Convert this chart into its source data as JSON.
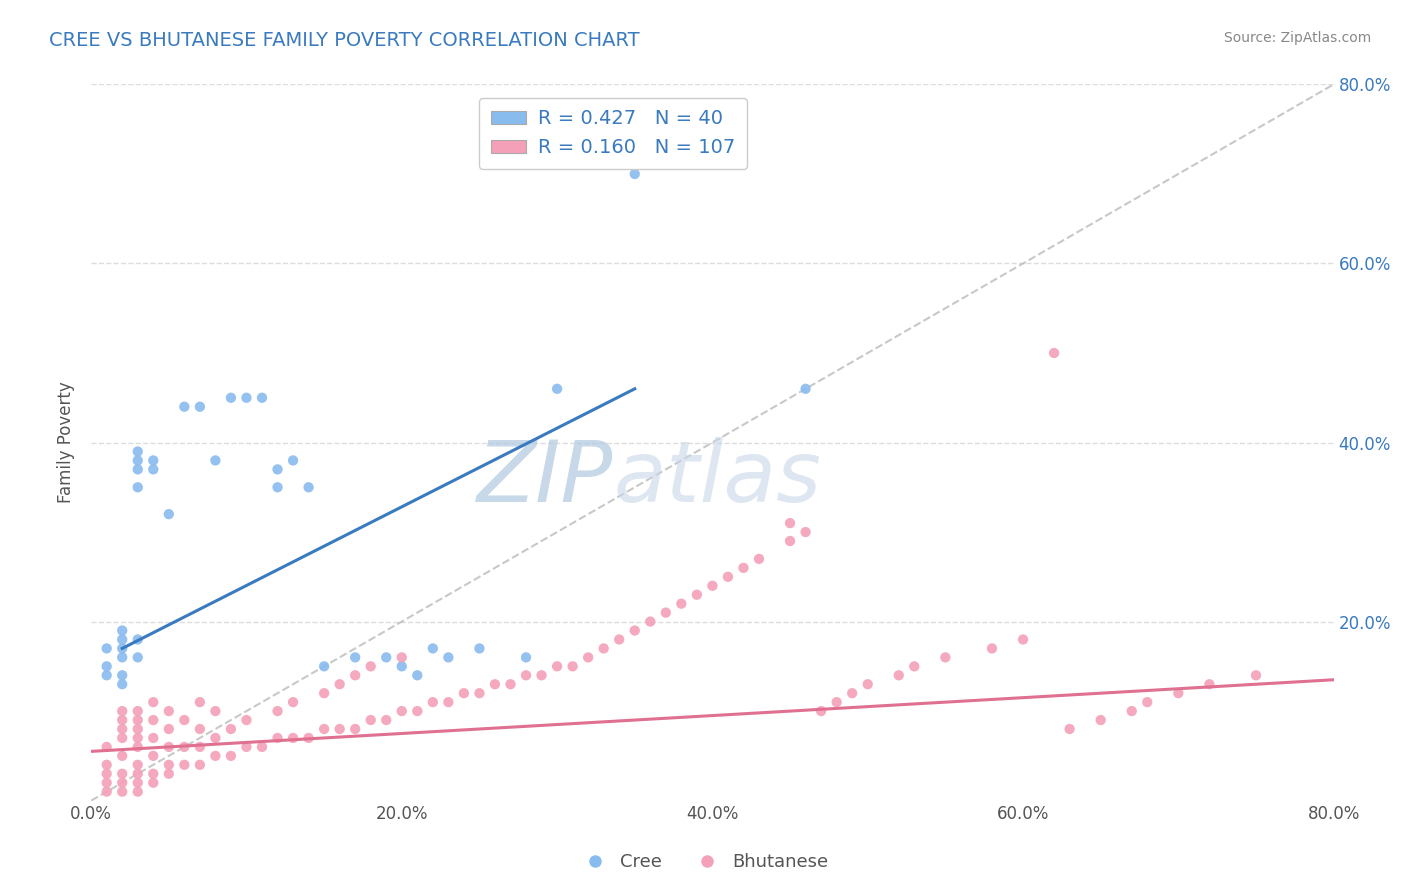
{
  "title": "CREE VS BHUTANESE FAMILY POVERTY CORRELATION CHART",
  "source": "Source: ZipAtlas.com",
  "ylabel": "Family Poverty",
  "xlim": [
    0.0,
    0.8
  ],
  "ylim": [
    0.0,
    0.8
  ],
  "xtick_labels": [
    "0.0%",
    "",
    "20.0%",
    "",
    "40.0%",
    "",
    "60.0%",
    "",
    "80.0%"
  ],
  "xtick_vals": [
    0.0,
    0.1,
    0.2,
    0.3,
    0.4,
    0.5,
    0.6,
    0.7,
    0.8
  ],
  "ytick_vals": [
    0.2,
    0.4,
    0.6,
    0.8
  ],
  "ytick_labels_right": [
    "20.0%",
    "40.0%",
    "60.0%",
    "80.0%"
  ],
  "cree_color": "#88bbee",
  "bhutanese_color": "#f4a0b8",
  "cree_line_color": "#3a7abf",
  "bhutanese_line_color": "#e07090",
  "cree_R": 0.427,
  "cree_N": 40,
  "bhutanese_R": 0.16,
  "bhutanese_N": 107,
  "legend_text_color": "#3a7abf",
  "diagonal_color": "#bbbbbb",
  "grid_color": "#dddddd",
  "watermark_color": "#c5d8ee",
  "cree_scatter_x": [
    0.01,
    0.01,
    0.01,
    0.02,
    0.02,
    0.02,
    0.02,
    0.02,
    0.02,
    0.03,
    0.03,
    0.03,
    0.03,
    0.03,
    0.03,
    0.04,
    0.04,
    0.05,
    0.06,
    0.07,
    0.08,
    0.09,
    0.1,
    0.11,
    0.12,
    0.12,
    0.13,
    0.14,
    0.15,
    0.17,
    0.19,
    0.2,
    0.21,
    0.22,
    0.23,
    0.25,
    0.28,
    0.3,
    0.35,
    0.46
  ],
  "cree_scatter_y": [
    0.14,
    0.15,
    0.17,
    0.13,
    0.14,
    0.16,
    0.17,
    0.18,
    0.19,
    0.16,
    0.18,
    0.35,
    0.37,
    0.38,
    0.39,
    0.37,
    0.38,
    0.32,
    0.44,
    0.44,
    0.38,
    0.45,
    0.45,
    0.45,
    0.35,
    0.37,
    0.38,
    0.35,
    0.15,
    0.16,
    0.16,
    0.15,
    0.14,
    0.17,
    0.16,
    0.17,
    0.16,
    0.46,
    0.7,
    0.46
  ],
  "bhutanese_scatter_x": [
    0.01,
    0.01,
    0.01,
    0.01,
    0.01,
    0.02,
    0.02,
    0.02,
    0.02,
    0.02,
    0.02,
    0.02,
    0.02,
    0.03,
    0.03,
    0.03,
    0.03,
    0.03,
    0.03,
    0.03,
    0.03,
    0.03,
    0.04,
    0.04,
    0.04,
    0.04,
    0.04,
    0.04,
    0.05,
    0.05,
    0.05,
    0.05,
    0.05,
    0.06,
    0.06,
    0.06,
    0.07,
    0.07,
    0.07,
    0.07,
    0.08,
    0.08,
    0.08,
    0.09,
    0.09,
    0.1,
    0.1,
    0.11,
    0.12,
    0.12,
    0.13,
    0.13,
    0.14,
    0.15,
    0.15,
    0.16,
    0.16,
    0.17,
    0.17,
    0.18,
    0.18,
    0.19,
    0.2,
    0.2,
    0.21,
    0.22,
    0.23,
    0.24,
    0.25,
    0.26,
    0.27,
    0.28,
    0.29,
    0.3,
    0.31,
    0.32,
    0.33,
    0.34,
    0.35,
    0.36,
    0.37,
    0.38,
    0.39,
    0.4,
    0.41,
    0.42,
    0.43,
    0.45,
    0.45,
    0.46,
    0.47,
    0.48,
    0.49,
    0.5,
    0.52,
    0.53,
    0.55,
    0.58,
    0.6,
    0.62,
    0.63,
    0.65,
    0.67,
    0.68,
    0.7,
    0.72,
    0.75
  ],
  "bhutanese_scatter_y": [
    0.01,
    0.02,
    0.03,
    0.04,
    0.06,
    0.01,
    0.02,
    0.03,
    0.05,
    0.07,
    0.08,
    0.09,
    0.1,
    0.01,
    0.02,
    0.03,
    0.04,
    0.06,
    0.07,
    0.08,
    0.09,
    0.1,
    0.02,
    0.03,
    0.05,
    0.07,
    0.09,
    0.11,
    0.03,
    0.04,
    0.06,
    0.08,
    0.1,
    0.04,
    0.06,
    0.09,
    0.04,
    0.06,
    0.08,
    0.11,
    0.05,
    0.07,
    0.1,
    0.05,
    0.08,
    0.06,
    0.09,
    0.06,
    0.07,
    0.1,
    0.07,
    0.11,
    0.07,
    0.08,
    0.12,
    0.08,
    0.13,
    0.08,
    0.14,
    0.09,
    0.15,
    0.09,
    0.1,
    0.16,
    0.1,
    0.11,
    0.11,
    0.12,
    0.12,
    0.13,
    0.13,
    0.14,
    0.14,
    0.15,
    0.15,
    0.16,
    0.17,
    0.18,
    0.19,
    0.2,
    0.21,
    0.22,
    0.23,
    0.24,
    0.25,
    0.26,
    0.27,
    0.29,
    0.31,
    0.3,
    0.1,
    0.11,
    0.12,
    0.13,
    0.14,
    0.15,
    0.16,
    0.17,
    0.18,
    0.5,
    0.08,
    0.09,
    0.1,
    0.11,
    0.12,
    0.13,
    0.14
  ]
}
